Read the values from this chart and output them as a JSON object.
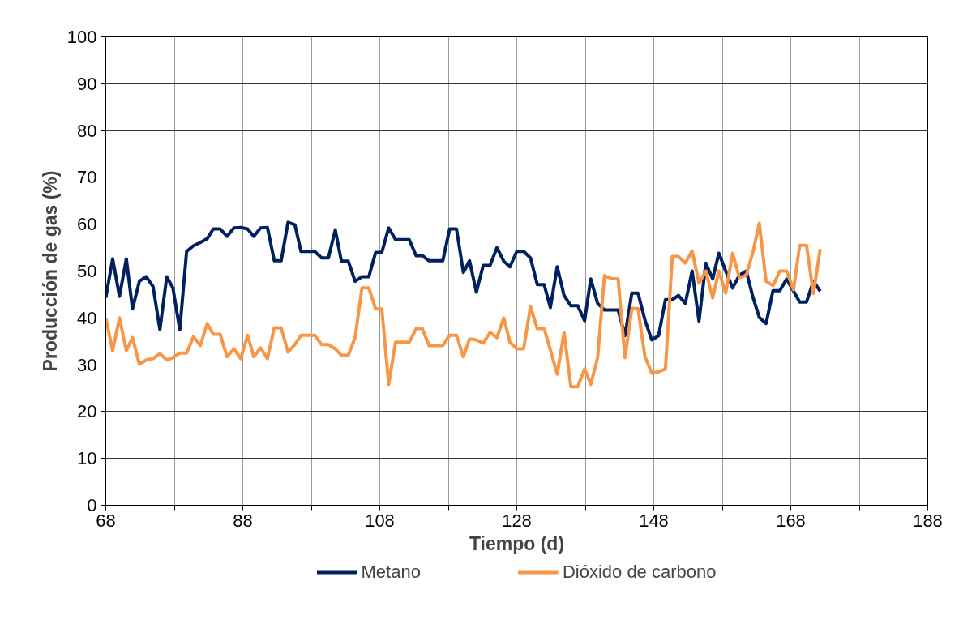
{
  "chart_data": {
    "type": "line",
    "xlabel": "Tiempo (d)",
    "ylabel": "Producción de gas (%)",
    "x": [
      68,
      69.0,
      70.0,
      71.0,
      71.9,
      72.9,
      73.9,
      74.9,
      75.9,
      76.9,
      77.8,
      78.8,
      79.8,
      80.8,
      81.8,
      82.8,
      83.7,
      84.7,
      85.7,
      86.7,
      87.7,
      88.7,
      89.6,
      90.6,
      91.6,
      92.6,
      93.6,
      94.6,
      95.6,
      96.5,
      97.5,
      98.5,
      99.5,
      100.5,
      101.5,
      102.4,
      103.4,
      104.4,
      105.4,
      106.4,
      107.4,
      108.3,
      109.3,
      110.3,
      111.3,
      112.3,
      113.3,
      114.2,
      115.2,
      116.2,
      117.2,
      118.2,
      119.2,
      120.2,
      121.1,
      122.1,
      123.1,
      124.1,
      125.1,
      126.1,
      127.0,
      128.0,
      129.0,
      130.0,
      131.0,
      132.0,
      132.9,
      133.9,
      134.9,
      135.9,
      136.9,
      137.9,
      138.8,
      139.8,
      140.8,
      141.8,
      142.8,
      143.8,
      144.8,
      145.7,
      146.7,
      147.7,
      148.7,
      149.7,
      150.7,
      151.6,
      152.6,
      153.6,
      154.6,
      155.6,
      156.6,
      157.5,
      158.5,
      159.5,
      160.5,
      161.5,
      162.5,
      163.4,
      164.4,
      165.4,
      166.4,
      167.4,
      168.4,
      169.3,
      170.3,
      171.3,
      172.3
    ],
    "series": [
      {
        "name": "Metano",
        "color": "#002060",
        "values": [
          44.3,
          52.6,
          44.6,
          52.6,
          41.9,
          47.8,
          48.8,
          46.7,
          37.5,
          48.8,
          46.4,
          37.5,
          54.2,
          55.4,
          56.1,
          56.9,
          59,
          59,
          57.4,
          59.2,
          59.3,
          59,
          57.4,
          59.2,
          59.3,
          52.2,
          52.2,
          60.4,
          59.9,
          54.2,
          54.2,
          54.2,
          52.8,
          52.8,
          58.8,
          52.1,
          52.1,
          47.8,
          48.8,
          48.8,
          54,
          54,
          59.2,
          56.7,
          56.7,
          56.7,
          53.3,
          53.3,
          52.2,
          52.2,
          52.2,
          59,
          59,
          49.7,
          52.2,
          45.5,
          51.2,
          51.2,
          55,
          52.1,
          50.9,
          54.2,
          54.2,
          52.8,
          47.1,
          47.1,
          42.2,
          50.9,
          44.8,
          42.6,
          42.6,
          39.4,
          48.3,
          43.1,
          41.7,
          41.7,
          41.7,
          36.2,
          45.3,
          45.3,
          39.6,
          35.3,
          36.2,
          43.9,
          43.9,
          44.8,
          43.1,
          50,
          39.3,
          51.7,
          48.3,
          53.8,
          50,
          46.4,
          49.1,
          50,
          44.3,
          40.1,
          38.8,
          45.8,
          45.8,
          48.3,
          45.7,
          43.4,
          43.4,
          47.8,
          45.7
        ]
      },
      {
        "name": "Dióxido de carbono",
        "color": "#f79646",
        "values": [
          40,
          33,
          40,
          33,
          35.8,
          30.1,
          31,
          31.3,
          32.4,
          31,
          31.5,
          32.5,
          32.5,
          36,
          34.1,
          38.8,
          36.5,
          36.5,
          31.7,
          33.4,
          31.3,
          36.3,
          31.7,
          33.6,
          31.3,
          37.9,
          37.9,
          32.7,
          34.3,
          36.3,
          36.3,
          36.3,
          34.3,
          34.3,
          33.4,
          32,
          32,
          35.8,
          46.4,
          46.4,
          41.9,
          41.9,
          25.8,
          34.8,
          34.8,
          34.8,
          37.7,
          37.7,
          34.1,
          34.1,
          34.1,
          36.3,
          36.3,
          31.7,
          35.5,
          35.3,
          34.6,
          36.9,
          35.8,
          40,
          34.8,
          33.4,
          33.4,
          42.4,
          37.7,
          37.7,
          33.2,
          28,
          36.9,
          25.3,
          25.3,
          29.1,
          25.8,
          31.5,
          49,
          48.4,
          48.3,
          31.5,
          42,
          42,
          31.8,
          28.2,
          28.5,
          29.1,
          53.1,
          53.1,
          51.7,
          54.3,
          47.4,
          50,
          44.3,
          50,
          45.3,
          53.8,
          48.6,
          49.1,
          54.2,
          60.2,
          47.8,
          46.9,
          50,
          50,
          46,
          55.5,
          55.5,
          45.2,
          54.7
        ]
      }
    ],
    "xlim": [
      68,
      188
    ],
    "xticks": [
      68,
      {
        "value": 78,
        "label": null
      },
      88,
      {
        "value": 98,
        "label": null
      },
      108,
      {
        "value": 118,
        "label": null
      },
      128,
      {
        "value": 138,
        "label": null
      },
      148,
      {
        "value": 158,
        "label": null
      },
      168,
      {
        "value": 178,
        "label": null
      },
      188
    ],
    "ylim": [
      0,
      100
    ],
    "yticks": [
      0,
      10,
      20,
      30,
      40,
      50,
      60,
      70,
      80,
      90,
      100
    ],
    "grid": true,
    "legend": "bottom",
    "line_style": "solid"
  }
}
